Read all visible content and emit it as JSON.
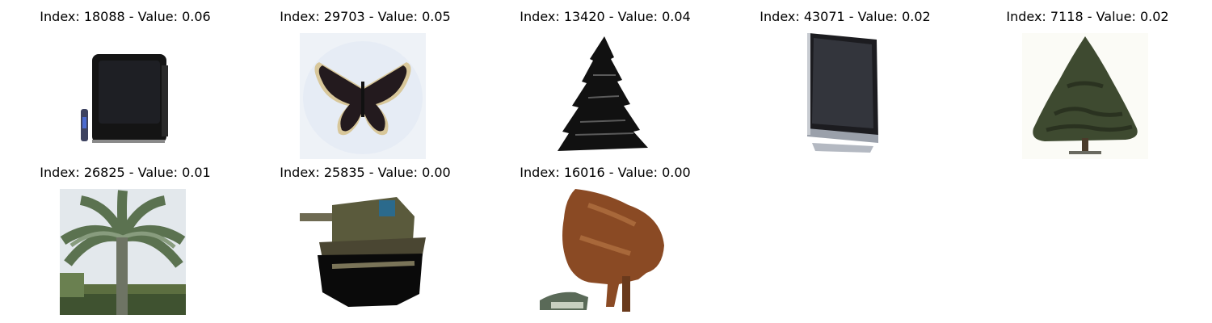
{
  "grid": {
    "items": [
      {
        "index": "18088",
        "value": "0.06",
        "title": "Index: 18088 - Value: 0.06",
        "icon": "television-icon"
      },
      {
        "index": "29703",
        "value": "0.05",
        "title": "Index: 29703 - Value: 0.05",
        "icon": "butterfly-icon"
      },
      {
        "index": "13420",
        "value": "0.04",
        "title": "Index: 13420 - Value: 0.04",
        "icon": "pine-tree-icon"
      },
      {
        "index": "43071",
        "value": "0.02",
        "title": "Index: 43071 - Value: 0.02",
        "icon": "monitor-icon"
      },
      {
        "index": "7118",
        "value": "0.02",
        "title": "Index: 7118 - Value: 0.02",
        "icon": "tree-icon"
      },
      {
        "index": "26825",
        "value": "0.01",
        "title": "Index: 26825 - Value: 0.01",
        "icon": "palm-tree-icon"
      },
      {
        "index": "25835",
        "value": "0.00",
        "title": "Index: 25835 - Value: 0.00",
        "icon": "tank-icon"
      },
      {
        "index": "16016",
        "value": "0.00",
        "title": "Index: 16016 - Value: 0.00",
        "icon": "animal-icon"
      }
    ]
  }
}
